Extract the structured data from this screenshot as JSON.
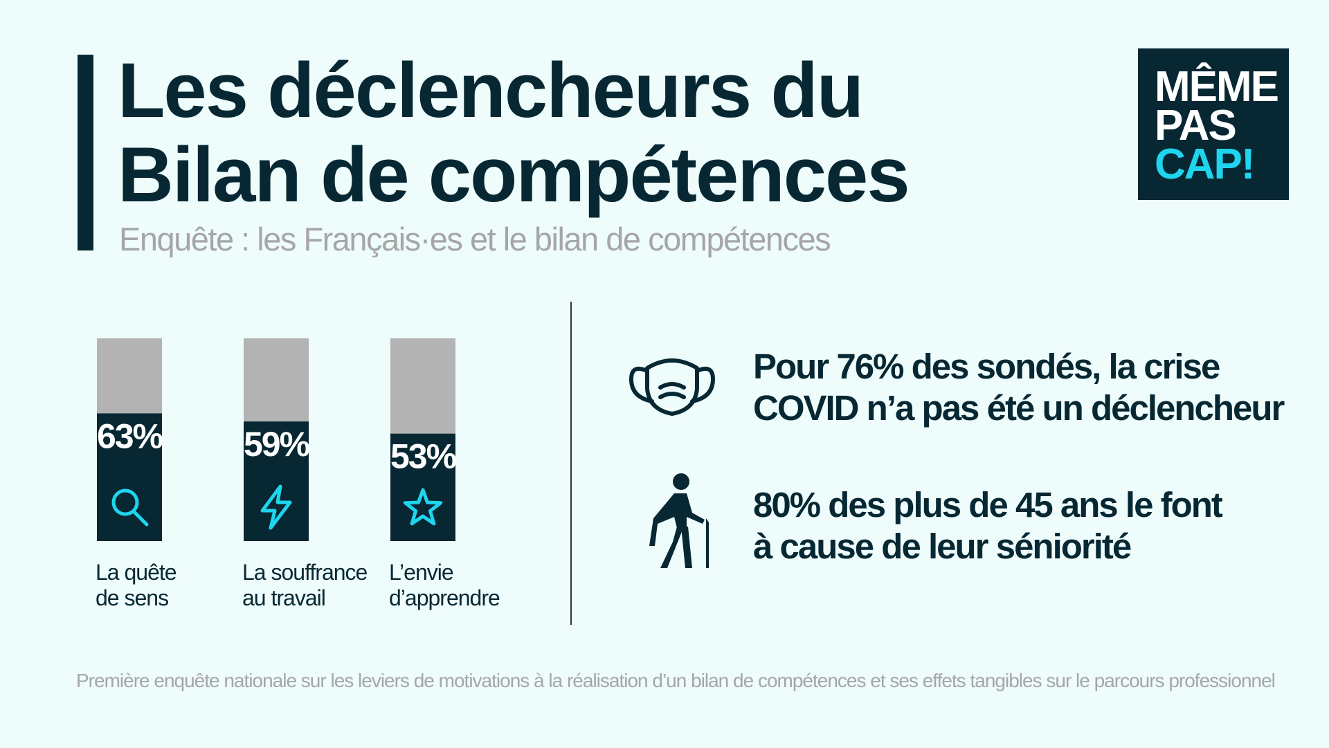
{
  "header": {
    "title_line1": "Les déclencheurs du",
    "title_line2": "Bilan de compétences",
    "subtitle": "Enquête : les Français·es et le bilan de compétences"
  },
  "logo": {
    "line1": "MÊME",
    "line2": "PAS",
    "line3": "CAP!"
  },
  "chart_data": {
    "type": "bar",
    "categories": [
      [
        "La quête",
        "de sens"
      ],
      [
        "La souffrance",
        "au travail"
      ],
      [
        "L’envie",
        "d’apprendre"
      ]
    ],
    "values": [
      63,
      59,
      53
    ],
    "value_labels": [
      "63%",
      "59%",
      "53%"
    ],
    "category_icons": [
      "search-icon",
      "lightning-icon",
      "star-icon"
    ],
    "ylim": [
      0,
      100
    ],
    "bar_color": "#072833",
    "track_color": "#b3b3b3",
    "icon_color": "#1fd5ee",
    "title": "",
    "xlabel": "",
    "ylabel": ""
  },
  "stats": [
    {
      "icon": "face-mask-icon",
      "line1": "Pour 76% des sondés, la crise",
      "line2": "COVID n’a pas été un déclencheur"
    },
    {
      "icon": "elderly-walking-cane-icon",
      "line1": "80% des plus de 45 ans le font",
      "line2": "à cause de leur séniorité"
    }
  ],
  "footnote": "Première enquête nationale sur les leviers de motivations à la réalisation d’un bilan de compétences et ses effets tangibles sur le parcours professionnel",
  "colors": {
    "background": "#eefcfb",
    "dark": "#072833",
    "accent": "#1fd5ee",
    "muted": "#a6a6a6"
  }
}
